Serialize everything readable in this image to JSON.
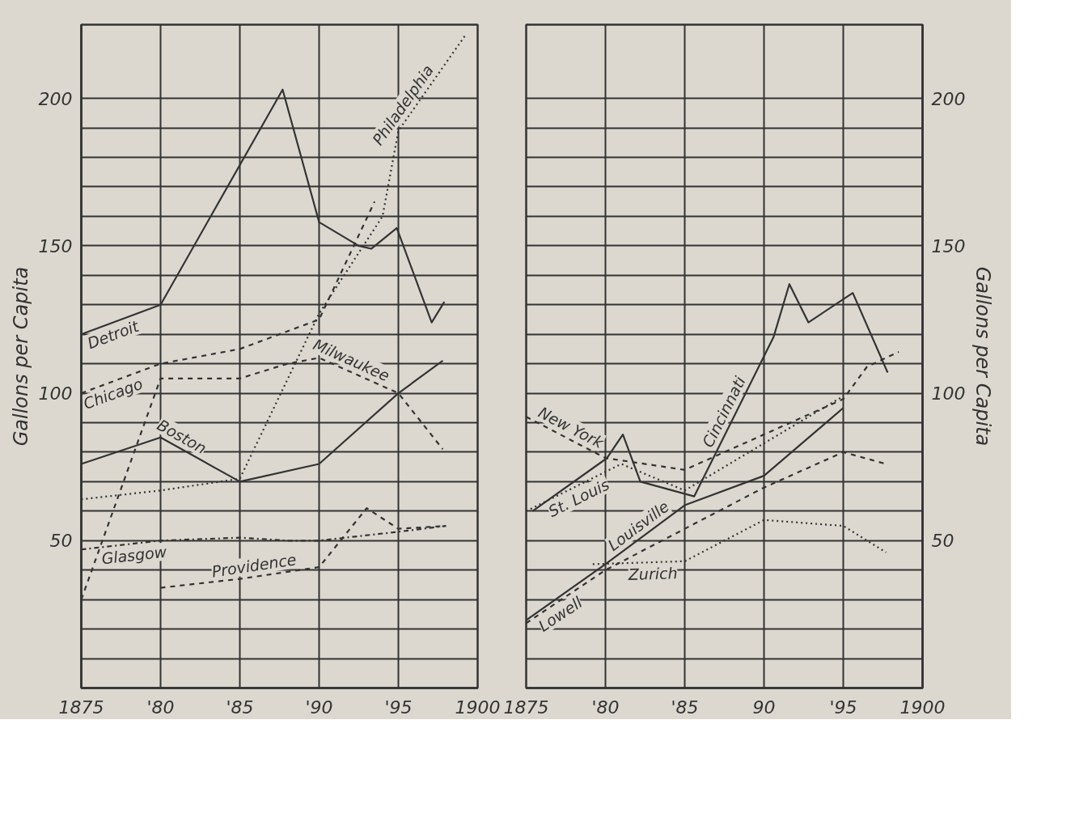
{
  "chart_data": [
    {
      "type": "line",
      "ylabel": "Gallons per Capita",
      "xlim": [
        1875,
        1900
      ],
      "ylim": [
        0,
        225
      ],
      "xticks": [
        1875,
        {
          "value": 1880,
          "label": "'80"
        },
        {
          "value": 1885,
          "label": "'85"
        },
        {
          "value": 1890,
          "label": "'90"
        },
        {
          "value": 1895,
          "label": "'95"
        },
        1900
      ],
      "yticks": [
        {
          "value": 10,
          "label": null
        },
        {
          "value": 20,
          "label": null
        },
        {
          "value": 30,
          "label": null
        },
        {
          "value": 40,
          "label": null
        },
        50,
        {
          "value": 60,
          "label": null
        },
        {
          "value": 70,
          "label": null
        },
        {
          "value": 80,
          "label": null
        },
        {
          "value": 90,
          "label": null
        },
        100,
        {
          "value": 110,
          "label": null
        },
        {
          "value": 120,
          "label": null
        },
        {
          "value": 130,
          "label": null
        },
        {
          "value": 140,
          "label": null
        },
        150,
        {
          "value": 160,
          "label": null
        },
        {
          "value": 170,
          "label": null
        },
        {
          "value": 180,
          "label": null
        },
        {
          "value": 190,
          "label": null
        },
        200
      ],
      "grid": true,
      "marker": "none",
      "series": [
        {
          "name": "Detroit",
          "color": "#333333",
          "line_style": "solid",
          "x": [
            1875,
            1880,
            1887.7,
            1890,
            1892.5,
            1893.3,
            1894.9,
            1897.1,
            1897.9
          ],
          "values": [
            120,
            130,
            203,
            158,
            150,
            149,
            156,
            124,
            131
          ]
        },
        {
          "name": "Chicago",
          "color": "#333333",
          "line_style": "dashed",
          "x": [
            1875,
            1880,
            1885,
            1890,
            1893.5
          ],
          "values": [
            100,
            110,
            115,
            125,
            165
          ]
        },
        {
          "name": "Philadelphia",
          "color": "#333333",
          "line_style": "dotted",
          "x": [
            1875,
            1880,
            1885,
            1890,
            1894,
            1895,
            1899.3
          ],
          "values": [
            64,
            67,
            71,
            127,
            160,
            189,
            222
          ]
        },
        {
          "name": "Milwaukee",
          "color": "#333333",
          "line_style": "dashed",
          "x": [
            1875,
            1880,
            1885,
            1888,
            1890,
            1895,
            1897.8
          ],
          "values": [
            30,
            105,
            105,
            110,
            112,
            100,
            81
          ]
        },
        {
          "name": "Boston",
          "color": "#333333",
          "line_style": "solid",
          "x": [
            1875,
            1880,
            1885,
            1890,
            1895,
            1897.8
          ],
          "values": [
            76,
            85,
            70,
            76,
            100,
            111
          ]
        },
        {
          "name": "Glasgow",
          "color": "#333333",
          "line_style": "dashdot",
          "x": [
            1875,
            1880,
            1885,
            1888,
            1890,
            1895,
            1898
          ],
          "values": [
            47,
            50,
            51,
            50,
            50,
            53,
            55
          ]
        },
        {
          "name": "Providence",
          "color": "#333333",
          "line_style": "dashed",
          "x": [
            1880,
            1885,
            1890,
            1893,
            1895,
            1898
          ],
          "values": [
            34,
            37,
            41,
            61,
            54,
            55
          ]
        }
      ]
    },
    {
      "type": "line",
      "ylabel": "Gallons per Capita",
      "xlim": [
        1875,
        1900
      ],
      "ylim": [
        0,
        225
      ],
      "xticks": [
        1875,
        {
          "value": 1880,
          "label": "'80"
        },
        {
          "value": 1885,
          "label": "'85"
        },
        {
          "value": 1890,
          "label": "90"
        },
        {
          "value": 1895,
          "label": "'95"
        },
        1900
      ],
      "yticks": [
        {
          "value": 10,
          "label": null
        },
        {
          "value": 20,
          "label": null
        },
        {
          "value": 30,
          "label": null
        },
        {
          "value": 40,
          "label": null
        },
        50,
        {
          "value": 60,
          "label": null
        },
        {
          "value": 70,
          "label": null
        },
        {
          "value": 80,
          "label": null
        },
        {
          "value": 90,
          "label": null
        },
        100,
        {
          "value": 110,
          "label": null
        },
        {
          "value": 120,
          "label": null
        },
        {
          "value": 130,
          "label": null
        },
        {
          "value": 140,
          "label": null
        },
        150,
        {
          "value": 160,
          "label": null
        },
        {
          "value": 170,
          "label": null
        },
        {
          "value": 180,
          "label": null
        },
        {
          "value": 190,
          "label": null
        },
        200
      ],
      "grid": true,
      "marker": "none",
      "series": [
        {
          "name": "Cincinnati",
          "color": "#333333",
          "line_style": "solid",
          "x": [
            1875.4,
            1880.1,
            1881.1,
            1882.2,
            1885.6,
            1890.6,
            1891.6,
            1892.8,
            1895.6,
            1897.8
          ],
          "values": [
            60,
            78,
            86,
            70,
            65,
            119,
            137,
            124,
            134,
            107
          ]
        },
        {
          "name": "Louisville",
          "color": "#333333",
          "line_style": "solid",
          "x": [
            1875,
            1880,
            1885,
            1890,
            1895
          ],
          "values": [
            23,
            42,
            62,
            72,
            95
          ]
        },
        {
          "name": "New York",
          "color": "#333333",
          "line_style": "dashed",
          "x": [
            1875,
            1880,
            1885,
            1895,
            1896.5,
            1898.5
          ],
          "values": [
            92,
            78,
            74,
            98,
            109,
            114
          ]
        },
        {
          "name": "St. Louis",
          "color": "#333333",
          "line_style": "dotted",
          "x": [
            1875,
            1881,
            1885,
            1895
          ],
          "values": [
            60,
            76,
            67,
            99
          ]
        },
        {
          "name": "Lowell",
          "color": "#333333",
          "line_style": "dashed",
          "x": [
            1875,
            1880,
            1890,
            1895,
            1897.7
          ],
          "values": [
            22,
            40,
            68,
            80,
            76
          ]
        },
        {
          "name": "Zurich",
          "color": "#333333",
          "line_style": "dotted",
          "x": [
            1879.2,
            1885,
            1890,
            1895,
            1897.7
          ],
          "values": [
            42,
            43,
            57,
            55,
            46
          ]
        }
      ]
    }
  ]
}
